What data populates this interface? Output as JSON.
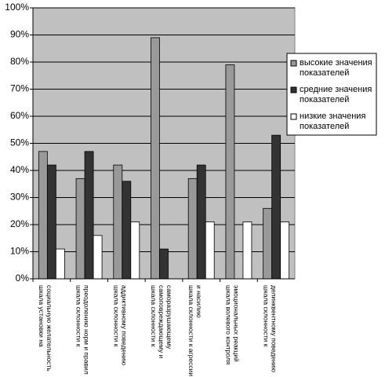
{
  "chart_data": {
    "type": "bar",
    "categories": [
      "шкала установки на социальную желательность",
      "шкала склонности к преодолению норм и правил",
      "шкала склонности к аддиктивному поведению",
      "шкала склонности к самоповреждающему и саморазрушающему",
      "шкала склонности к агрессии и насилию",
      "шкала волевого контроля эмоциональных реакций",
      "шкала склонности к делинквентному поведению"
    ],
    "series": [
      {
        "name": "высокие значения показателей",
        "color": "#999999",
        "values": [
          47,
          37,
          42,
          89,
          37,
          79,
          26
        ]
      },
      {
        "name": "средние значения показателей",
        "color": "#333333",
        "values": [
          42,
          47,
          36,
          11,
          42,
          0,
          53
        ]
      },
      {
        "name": "низкие значения показателей",
        "color": "#ffffff",
        "values": [
          11,
          16,
          21,
          0,
          21,
          21,
          21
        ]
      }
    ],
    "ylim": [
      0,
      100
    ],
    "yticks": [
      {
        "value": 0,
        "label": "0%"
      },
      {
        "value": 10,
        "label": "10%"
      },
      {
        "value": 20,
        "label": "20%"
      },
      {
        "value": 30,
        "label": "30%"
      },
      {
        "value": 40,
        "label": "40%"
      },
      {
        "value": 50,
        "label": "50%"
      },
      {
        "value": 60,
        "label": "60%"
      },
      {
        "value": 70,
        "label": "70%"
      },
      {
        "value": 80,
        "label": "80%"
      },
      {
        "value": 90,
        "label": "90%"
      },
      {
        "value": 100,
        "label": "100%"
      }
    ],
    "grid": true,
    "legend": "right"
  }
}
